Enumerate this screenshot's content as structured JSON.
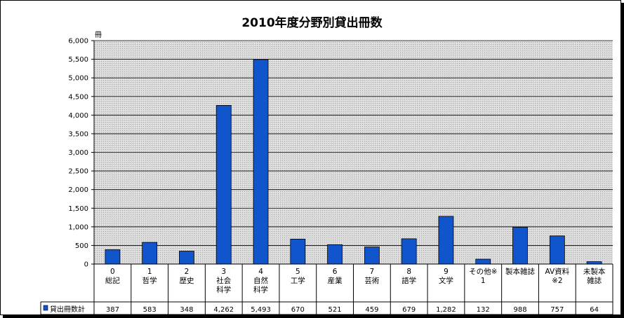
{
  "chart_data": {
    "type": "bar",
    "title": "2010年度分野別貸出冊数",
    "ylabel": "冊",
    "ylim": [
      0,
      6000
    ],
    "yticks": [
      "0",
      "500",
      "1,000",
      "1,500",
      "2,000",
      "2,500",
      "3,000",
      "3,500",
      "4,000",
      "4,500",
      "5,000",
      "5,500",
      "6,000"
    ],
    "categories": [
      [
        "0",
        "総記"
      ],
      [
        "1",
        "哲学"
      ],
      [
        "2",
        "歴史"
      ],
      [
        "3",
        "社会",
        "科学"
      ],
      [
        "4",
        "自然",
        "科学"
      ],
      [
        "5",
        "工学"
      ],
      [
        "6",
        "産業"
      ],
      [
        "7",
        "芸術"
      ],
      [
        "8",
        "語学"
      ],
      [
        "9",
        "文学"
      ],
      [
        "その他※",
        "1"
      ],
      [
        "製本雑誌"
      ],
      [
        "AV資料",
        "※2"
      ],
      [
        "未製本",
        "雑誌"
      ]
    ],
    "series": [
      {
        "name": "貸出冊数計",
        "values": [
          387,
          583,
          348,
          4262,
          5493,
          670,
          521,
          459,
          679,
          1282,
          132,
          988,
          757,
          64
        ],
        "labels": [
          "387",
          "583",
          "348",
          "4,262",
          "5,493",
          "670",
          "521",
          "459",
          "679",
          "1,282",
          "132",
          "988",
          "757",
          "64"
        ]
      }
    ],
    "grid": true,
    "legend": "data-table",
    "colors": {
      "bar": "#1155cc",
      "bar_stroke": "#000000",
      "plot_bg": "#d4d4d4"
    }
  }
}
